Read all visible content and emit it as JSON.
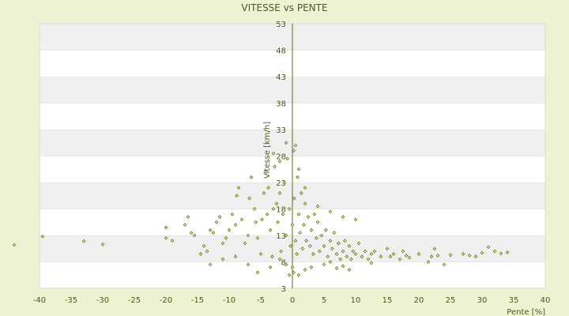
{
  "chart_data": {
    "type": "scatter",
    "title": "VITESSE vs PENTE",
    "xlabel": "Pente [%]",
    "ylabel": "Vitesse [km/h]",
    "xlim": [
      -40,
      40
    ],
    "ylim": [
      3,
      53
    ],
    "x_ticks": [
      -40,
      -35,
      -30,
      -25,
      -20,
      -15,
      -10,
      -5,
      0,
      5,
      10,
      15,
      20,
      25,
      30,
      35,
      40
    ],
    "y_ticks": [
      3,
      8,
      13,
      18,
      23,
      28,
      33,
      38,
      43,
      48,
      53
    ],
    "grid": "horizontal bands",
    "colors": {
      "background": "#eef3d4",
      "plot_band_light": "#ffffff",
      "plot_band_dark": "#f0f0f0",
      "axis": "#5b6b12",
      "marker": "#6b7d12",
      "text": "#4a5a1a"
    },
    "series": [
      {
        "points": [
          [
            -44,
            11.2
          ],
          [
            -39.5,
            12.8
          ],
          [
            -33,
            11.9
          ],
          [
            -30,
            11.3
          ],
          [
            -20,
            12.5
          ],
          [
            -20,
            14.5
          ],
          [
            -19,
            12
          ],
          [
            -17,
            15
          ],
          [
            -16.5,
            16.5
          ],
          [
            -16,
            13.5
          ],
          [
            -15.5,
            13
          ],
          [
            -14.5,
            9.5
          ],
          [
            -14,
            11
          ],
          [
            -13.5,
            10
          ],
          [
            -13,
            14
          ],
          [
            -12.5,
            13.5
          ],
          [
            -12,
            15.5
          ],
          [
            -11.5,
            16.5
          ],
          [
            -11,
            11.5
          ],
          [
            -10.5,
            12.5
          ],
          [
            -10,
            14
          ],
          [
            -9.5,
            17
          ],
          [
            -9,
            15
          ],
          [
            -8.8,
            20.5
          ],
          [
            -8.5,
            22
          ],
          [
            -8,
            16
          ],
          [
            -7.5,
            11.5
          ],
          [
            -7,
            13
          ],
          [
            -6.8,
            20
          ],
          [
            -6.5,
            24
          ],
          [
            -6,
            18
          ],
          [
            -5.8,
            15.5
          ],
          [
            -5.5,
            12.5
          ],
          [
            -5,
            9.5
          ],
          [
            -4.8,
            16
          ],
          [
            -4.5,
            21
          ],
          [
            -4.2,
            25
          ],
          [
            -4,
            17
          ],
          [
            -3.8,
            22
          ],
          [
            -3.5,
            14
          ],
          [
            -3.2,
            9
          ],
          [
            -3,
            18
          ],
          [
            -2.8,
            26
          ],
          [
            -2.5,
            19
          ],
          [
            -2.3,
            15.5
          ],
          [
            -2,
            21
          ],
          [
            -1.8,
            10
          ],
          [
            -1.5,
            17
          ],
          [
            -1.3,
            23
          ],
          [
            -1,
            13
          ],
          [
            -0.8,
            27.5
          ],
          [
            -0.5,
            18
          ],
          [
            -0.3,
            11
          ],
          [
            0,
            15
          ],
          [
            0.2,
            29
          ],
          [
            0.3,
            20
          ],
          [
            0.5,
            12
          ],
          [
            0.7,
            9.5
          ],
          [
            0.8,
            24
          ],
          [
            1,
            17
          ],
          [
            1.2,
            13.5
          ],
          [
            1.4,
            21
          ],
          [
            1.6,
            10.5
          ],
          [
            1.8,
            15
          ],
          [
            2,
            19
          ],
          [
            2.2,
            12
          ],
          [
            2.5,
            16.5
          ],
          [
            2.8,
            11
          ],
          [
            3,
            14
          ],
          [
            3.3,
            9.5
          ],
          [
            3.5,
            17
          ],
          [
            3.8,
            12.5
          ],
          [
            4,
            15.5
          ],
          [
            4.3,
            10
          ],
          [
            4.6,
            13
          ],
          [
            5,
            11
          ],
          [
            5.3,
            14
          ],
          [
            5.6,
            9
          ],
          [
            6,
            12
          ],
          [
            6.3,
            10.5
          ],
          [
            6.6,
            13.5
          ],
          [
            7,
            9.5
          ],
          [
            7.3,
            11.5
          ],
          [
            7.6,
            8.5
          ],
          [
            8,
            10
          ],
          [
            8.3,
            12
          ],
          [
            8.6,
            9
          ],
          [
            9,
            11
          ],
          [
            9.3,
            8.5
          ],
          [
            9.6,
            10
          ],
          [
            10,
            9.5
          ],
          [
            10.5,
            11.5
          ],
          [
            11,
            9
          ],
          [
            11.5,
            10
          ],
          [
            12,
            8.5
          ],
          [
            12.5,
            9.5
          ],
          [
            13,
            10
          ],
          [
            14,
            9
          ],
          [
            15,
            10.5
          ],
          [
            15.5,
            9
          ],
          [
            16,
            9.5
          ],
          [
            17,
            8.5
          ],
          [
            17.5,
            10
          ],
          [
            18,
            9.2
          ],
          [
            18.5,
            8.8
          ],
          [
            20,
            9.5
          ],
          [
            21.5,
            8
          ],
          [
            22,
            9
          ],
          [
            22.5,
            10.5
          ],
          [
            23,
            9.2
          ],
          [
            24,
            7.5
          ],
          [
            25,
            9.3
          ],
          [
            27,
            9.5
          ],
          [
            28,
            9.2
          ],
          [
            29,
            9
          ],
          [
            30,
            9.7
          ],
          [
            31,
            10.8
          ],
          [
            32,
            10
          ],
          [
            33,
            9.6
          ],
          [
            34,
            9.8
          ],
          [
            10,
            16
          ],
          [
            8,
            16.5
          ],
          [
            6,
            17.5
          ],
          [
            4,
            18.5
          ],
          [
            2,
            22
          ],
          [
            1,
            25.5
          ],
          [
            0.5,
            30
          ],
          [
            -1,
            30.5
          ],
          [
            -2,
            27
          ],
          [
            -3,
            28.5
          ],
          [
            0,
            7
          ],
          [
            0.2,
            6
          ],
          [
            -0.5,
            5.5
          ],
          [
            1,
            5.5
          ],
          [
            2,
            6.5
          ],
          [
            3,
            7
          ],
          [
            -1,
            7.5
          ],
          [
            -2,
            8.5
          ],
          [
            -3.5,
            7
          ],
          [
            -5.5,
            6
          ],
          [
            -7,
            7.5
          ],
          [
            -9,
            9
          ],
          [
            -11,
            8.5
          ],
          [
            -13,
            7.5
          ],
          [
            5,
            7.5
          ],
          [
            6,
            8
          ],
          [
            7,
            6.8
          ],
          [
            8,
            7.2
          ],
          [
            9,
            6.5
          ],
          [
            12.5,
            7.8
          ]
        ]
      }
    ]
  }
}
